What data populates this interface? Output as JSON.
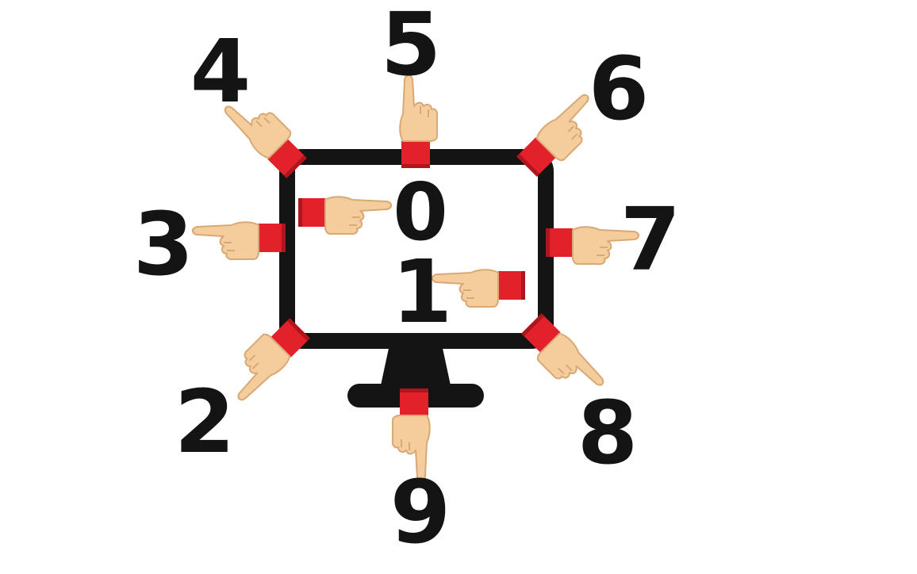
{
  "digits": {
    "d0": "0",
    "d1": "1",
    "d2": "2",
    "d3": "3",
    "d4": "4",
    "d5": "5",
    "d6": "6",
    "d7": "7",
    "d8": "8",
    "d9": "9"
  },
  "colors": {
    "ink": "#141414",
    "sleeve": "#e3212b",
    "sleeve_dark": "#b0151d",
    "skin": "#f5cc9c",
    "skin_line": "#d9a874",
    "background": "#ffffff"
  },
  "icons": {
    "monitor": "computer-monitor-icon",
    "hand": "pointing-hand-icon"
  }
}
